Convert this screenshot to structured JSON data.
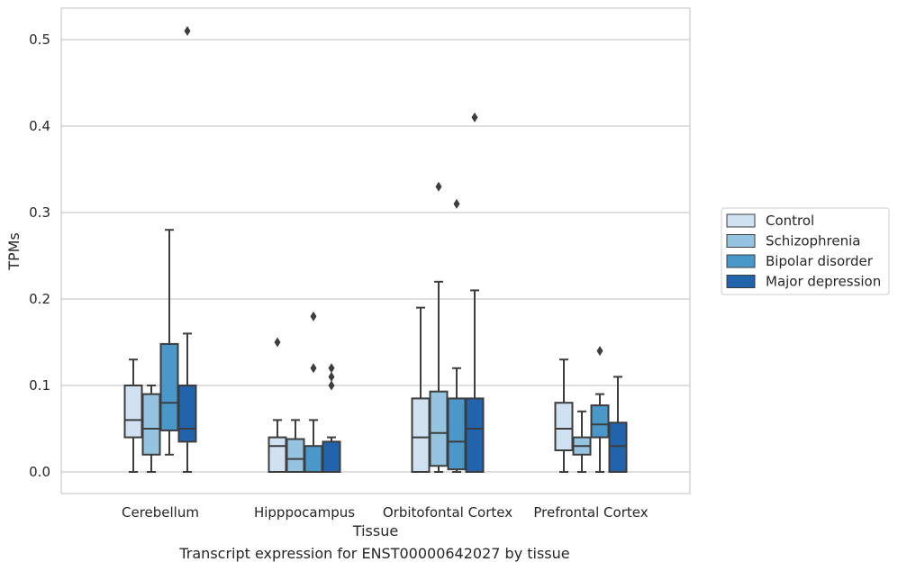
{
  "chart_data": {
    "type": "box",
    "xlabel": "Tissue",
    "ylabel": "TPMs",
    "ylim": [
      -0.025,
      0.535
    ],
    "yticks": [
      0.0,
      0.1,
      0.2,
      0.3,
      0.4,
      0.5
    ],
    "ytick_labels": [
      "0.0",
      "0.1",
      "0.2",
      "0.3",
      "0.4",
      "0.5"
    ],
    "grid": "horizontal",
    "legend_position": "right",
    "categories": [
      "Cerebellum",
      "Hipppocampus",
      "Orbitofontal Cortex",
      "Prefrontal Cortex"
    ],
    "series": [
      {
        "name": "Control",
        "color": "#d0e1f2",
        "boxes": [
          {
            "whislo": 0.0,
            "q1": 0.04,
            "med": 0.06,
            "q3": 0.1,
            "whishi": 0.13,
            "fliers": []
          },
          {
            "whislo": 0.0,
            "q1": 0.0,
            "med": 0.03,
            "q3": 0.04,
            "whishi": 0.06,
            "fliers": [
              0.15
            ]
          },
          {
            "whislo": 0.0,
            "q1": 0.0,
            "med": 0.04,
            "q3": 0.085,
            "whishi": 0.19,
            "fliers": []
          },
          {
            "whislo": 0.0,
            "q1": 0.025,
            "med": 0.05,
            "q3": 0.08,
            "whishi": 0.13,
            "fliers": []
          }
        ]
      },
      {
        "name": "Schizophrenia",
        "color": "#94c4df",
        "boxes": [
          {
            "whislo": 0.0,
            "q1": 0.02,
            "med": 0.05,
            "q3": 0.09,
            "whishi": 0.1,
            "fliers": []
          },
          {
            "whislo": 0.0,
            "q1": 0.0,
            "med": 0.015,
            "q3": 0.038,
            "whishi": 0.06,
            "fliers": []
          },
          {
            "whislo": 0.0,
            "q1": 0.007,
            "med": 0.045,
            "q3": 0.093,
            "whishi": 0.22,
            "fliers": [
              0.33
            ]
          },
          {
            "whislo": 0.0,
            "q1": 0.02,
            "med": 0.03,
            "q3": 0.04,
            "whishi": 0.07,
            "fliers": []
          }
        ]
      },
      {
        "name": "Bipolar disorder",
        "color": "#4a98c9",
        "boxes": [
          {
            "whislo": 0.02,
            "q1": 0.048,
            "med": 0.08,
            "q3": 0.148,
            "whishi": 0.28,
            "fliers": []
          },
          {
            "whislo": 0.0,
            "q1": 0.0,
            "med": 0.0,
            "q3": 0.03,
            "whishi": 0.06,
            "fliers": [
              0.12,
              0.18
            ]
          },
          {
            "whislo": 0.0,
            "q1": 0.003,
            "med": 0.035,
            "q3": 0.085,
            "whishi": 0.12,
            "fliers": [
              0.31
            ]
          },
          {
            "whislo": 0.0,
            "q1": 0.04,
            "med": 0.055,
            "q3": 0.077,
            "whishi": 0.09,
            "fliers": [
              0.14
            ]
          }
        ]
      },
      {
        "name": "Major depression",
        "color": "#2164ab",
        "boxes": [
          {
            "whislo": 0.0,
            "q1": 0.035,
            "med": 0.05,
            "q3": 0.1,
            "whishi": 0.16,
            "fliers": [
              0.51
            ]
          },
          {
            "whislo": 0.0,
            "q1": 0.0,
            "med": 0.0,
            "q3": 0.035,
            "whishi": 0.04,
            "fliers": [
              0.1,
              0.11,
              0.12
            ]
          },
          {
            "whislo": 0.0,
            "q1": 0.0,
            "med": 0.05,
            "q3": 0.085,
            "whishi": 0.21,
            "fliers": [
              0.41
            ]
          },
          {
            "whislo": 0.0,
            "q1": 0.0,
            "med": 0.03,
            "q3": 0.057,
            "whishi": 0.11,
            "fliers": []
          }
        ]
      }
    ]
  },
  "caption": "Transcript expression for ENST00000642027 by tissue"
}
